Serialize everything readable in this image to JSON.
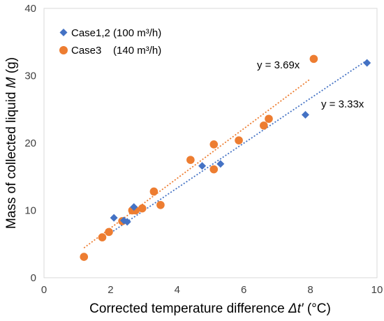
{
  "chart_data": {
    "type": "scatter",
    "xlabel_prefix": "Corrected temperature difference ",
    "xlabel_symbol": "Δt′",
    "xlabel_suffix": " (°C)",
    "ylabel_prefix": "Mass of collected liquid ",
    "ylabel_symbol": "M",
    "ylabel_suffix": " (g)",
    "xlim": [
      0,
      10
    ],
    "ylim": [
      0,
      40
    ],
    "x_ticks": [
      "0",
      "2",
      "4",
      "6",
      "8",
      "10"
    ],
    "y_ticks": [
      "0",
      "10",
      "20",
      "30",
      "40"
    ],
    "grid": false,
    "legend_position": "top-left",
    "series": [
      {
        "name": "Case1,2 (100 m³/h)",
        "marker": "diamond",
        "color": "#4472C4",
        "points": [
          {
            "x": 2.1,
            "y": 8.9
          },
          {
            "x": 2.4,
            "y": 8.5
          },
          {
            "x": 2.5,
            "y": 8.3
          },
          {
            "x": 2.7,
            "y": 10.5
          },
          {
            "x": 4.75,
            "y": 16.6
          },
          {
            "x": 5.3,
            "y": 16.9
          },
          {
            "x": 7.85,
            "y": 24.2
          },
          {
            "x": 9.7,
            "y": 31.9
          }
        ],
        "trendline": {
          "slope": 3.33,
          "x_range": [
            2.0,
            9.7
          ],
          "label": "y = 3.33x"
        }
      },
      {
        "name": "Case3    (140 m³/h)",
        "marker": "circle",
        "color": "#ED7D31",
        "points": [
          {
            "x": 1.2,
            "y": 3.1
          },
          {
            "x": 1.75,
            "y": 6.0
          },
          {
            "x": 1.95,
            "y": 6.8
          },
          {
            "x": 2.35,
            "y": 8.4
          },
          {
            "x": 2.65,
            "y": 10.0
          },
          {
            "x": 2.75,
            "y": 10.0
          },
          {
            "x": 2.95,
            "y": 10.3
          },
          {
            "x": 3.3,
            "y": 12.8
          },
          {
            "x": 3.5,
            "y": 10.8
          },
          {
            "x": 4.4,
            "y": 17.5
          },
          {
            "x": 5.1,
            "y": 16.1
          },
          {
            "x": 5.1,
            "y": 19.8
          },
          {
            "x": 5.85,
            "y": 20.4
          },
          {
            "x": 6.6,
            "y": 22.6
          },
          {
            "x": 6.75,
            "y": 23.6
          },
          {
            "x": 8.1,
            "y": 32.5
          }
        ],
        "trendline": {
          "slope": 3.69,
          "x_range": [
            1.2,
            8.0
          ],
          "label": "y = 3.69x"
        }
      }
    ]
  }
}
